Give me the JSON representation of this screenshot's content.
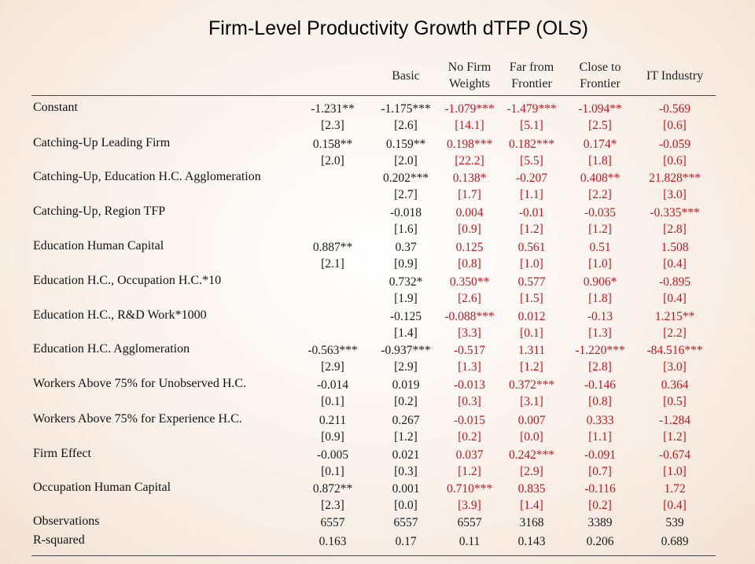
{
  "title": "Firm-Level Productivity Growth dTFP (OLS)",
  "columns": [
    "",
    "Basic",
    "No Firm\nWeights",
    "Far from\nFrontier",
    "Close to\nFrontier",
    "IT Industry"
  ],
  "rows": [
    {
      "label": "Constant",
      "cells": [
        [
          "-1.231**",
          "[2.3]"
        ],
        [
          "-1.175***",
          "[2.6]"
        ],
        [
          "-1.079***",
          "[14.1]"
        ],
        [
          "-1.479***",
          "[5.1]"
        ],
        [
          "-1.094**",
          "[2.5]"
        ],
        [
          "-0.569",
          "[0.6]"
        ]
      ]
    },
    {
      "label": "Catching-Up Leading Firm",
      "cells": [
        [
          "0.158**",
          "[2.0]"
        ],
        [
          "0.159**",
          "[2.0]"
        ],
        [
          "0.198***",
          "[22.2]"
        ],
        [
          "0.182***",
          "[5.5]"
        ],
        [
          "0.174*",
          "[1.8]"
        ],
        [
          "-0.059",
          "[0.6]"
        ]
      ]
    },
    {
      "label": "Catching-Up, Education H.C. Agglomeration",
      "cells": [
        [
          "",
          ""
        ],
        [
          "0.202***",
          "[2.7]"
        ],
        [
          "0.138*",
          "[1.7]"
        ],
        [
          "-0.207",
          "[1.1]"
        ],
        [
          "0.408**",
          "[2.2]"
        ],
        [
          "21.828***",
          "[3.0]"
        ]
      ]
    },
    {
      "label": "Catching-Up, Region TFP",
      "cells": [
        [
          "",
          ""
        ],
        [
          "-0.018",
          "[1.6]"
        ],
        [
          "0.004",
          "[0.9]"
        ],
        [
          "-0.01",
          "[1.2]"
        ],
        [
          "-0.035",
          "[1.2]"
        ],
        [
          "-0.335***",
          "[2.8]"
        ]
      ]
    },
    {
      "label": "Education Human Capital",
      "cells": [
        [
          "0.887**",
          "[2.1]"
        ],
        [
          "0.37",
          "[0.9]"
        ],
        [
          "0.125",
          "[0.8]"
        ],
        [
          "0.561",
          "[1.0]"
        ],
        [
          "0.51",
          "[1.0]"
        ],
        [
          "1.508",
          "[0.4]"
        ]
      ]
    },
    {
      "label": "Education H.C., Occupation H.C.*10",
      "cells": [
        [
          "",
          ""
        ],
        [
          "0.732*",
          "[1.9]"
        ],
        [
          "0.350**",
          "[2.6]"
        ],
        [
          "0.577",
          "[1.5]"
        ],
        [
          "0.906*",
          "[1.8]"
        ],
        [
          "-0.895",
          "[0.4]"
        ]
      ]
    },
    {
      "label": "Education H.C., R&D Work*1000",
      "cells": [
        [
          "",
          ""
        ],
        [
          "-0.125",
          "[1.4]"
        ],
        [
          "-0.088***",
          "[3.3]"
        ],
        [
          "0.012",
          "[0.1]"
        ],
        [
          "-0.13",
          "[1.3]"
        ],
        [
          "1.215**",
          "[2.2]"
        ]
      ]
    },
    {
      "label": "Education H.C. Agglomeration",
      "cells": [
        [
          "-0.563***",
          "[2.9]"
        ],
        [
          "-0.937***",
          "[2.9]"
        ],
        [
          "-0.517",
          "[1.3]"
        ],
        [
          "1.311",
          "[1.2]"
        ],
        [
          "-1.220***",
          "[2.8]"
        ],
        [
          "-84.516***",
          "[3.0]"
        ]
      ]
    },
    {
      "label": "Workers Above 75% for Unobserved H.C.",
      "cells": [
        [
          "-0.014",
          "[0.1]"
        ],
        [
          "0.019",
          "[0.2]"
        ],
        [
          "-0.013",
          "[0.3]"
        ],
        [
          "0.372***",
          "[3.1]"
        ],
        [
          "-0.146",
          "[0.8]"
        ],
        [
          "0.364",
          "[0.5]"
        ]
      ]
    },
    {
      "label": "Workers Above 75% for Experience H.C.",
      "cells": [
        [
          "0.211",
          "[0.9]"
        ],
        [
          "0.267",
          "[1.2]"
        ],
        [
          "-0.015",
          "[0.2]"
        ],
        [
          "0.007",
          "[0.0]"
        ],
        [
          "0.333",
          "[1.1]"
        ],
        [
          "-1.284",
          "[1.2]"
        ]
      ]
    },
    {
      "label": "Firm Effect",
      "cells": [
        [
          "-0.005",
          "[0.1]"
        ],
        [
          "0.021",
          "[0.3]"
        ],
        [
          "0.037",
          "[1.2]"
        ],
        [
          "0.242***",
          "[2.9]"
        ],
        [
          "-0.091",
          "[0.7]"
        ],
        [
          "-0.674",
          "[1.0]"
        ]
      ]
    },
    {
      "label": "Occupation Human Capital",
      "cells": [
        [
          "0.872**",
          "[2.3]"
        ],
        [
          "0.001",
          "[0.0]"
        ],
        [
          "0.710***",
          "[3.9]"
        ],
        [
          "0.835",
          "[1.4]"
        ],
        [
          "-0.116",
          "[0.2]"
        ],
        [
          "1.72",
          "[0.4]"
        ]
      ]
    }
  ],
  "footer_rows": [
    {
      "label": "Observations",
      "cells": [
        "6557",
        "6557",
        "6557",
        "3168",
        "3389",
        "539"
      ]
    },
    {
      "label": "R-squared",
      "cells": [
        "0.163",
        "0.17",
        "0.11",
        "0.143",
        "0.206",
        "0.689"
      ]
    }
  ],
  "colors": {
    "col0": "black",
    "col1": "black",
    "col2": "red",
    "col3": "red",
    "col4": "red",
    "col5": "red"
  }
}
